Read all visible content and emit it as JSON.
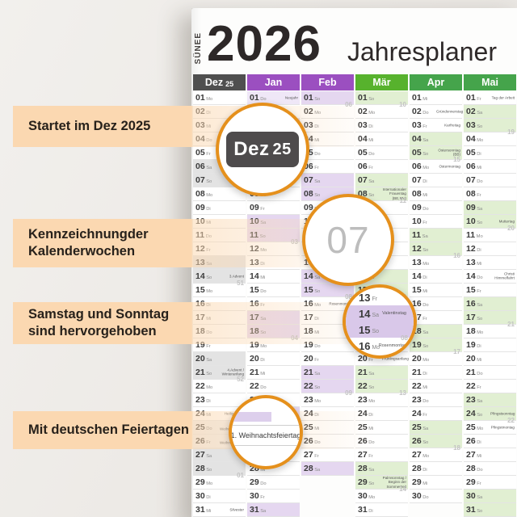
{
  "header": {
    "brand": "SÜNEE",
    "year": "2026",
    "title": "Jahresplaner"
  },
  "colors": {
    "accent_orange": "#e5901c",
    "band_peach": "#fbd8b1",
    "dez_header": "#4f4f4f",
    "purple_header": "#9b4fc0",
    "green_header_maerz": "#57b22d",
    "green_header": "#45a44b"
  },
  "annotations": {
    "bands": [
      {
        "lines": [
          "Startet im Dez 2025"
        ]
      },
      {
        "lines": [
          "Kennzeichnungder",
          "Kalenderwochen"
        ]
      },
      {
        "lines": [
          "Samstag und Sonntag",
          "sind hervorgehoben"
        ]
      },
      {
        "lines": [
          "Mit deutschen Feiertagen"
        ]
      }
    ]
  },
  "callouts": {
    "dez25": {
      "month": "Dez",
      "year_suffix": "25"
    },
    "week_number": {
      "value": "07"
    },
    "weekend": {
      "highlight_color": "#d9c8e9",
      "rows": [
        {
          "d": "13",
          "w": "Fr"
        },
        {
          "d": "14",
          "w": "Sa",
          "we": 1,
          "hol": "Valentinstag"
        },
        {
          "d": "15",
          "w": "So",
          "we": 1
        },
        {
          "d": "16",
          "w": "Mo",
          "kw": "08",
          "hol": "Rosenmontag"
        }
      ]
    },
    "holiday": {
      "label": "1. Weihnachtsfeiertag"
    }
  },
  "calendar": {
    "months": [
      {
        "name": "Dez 25",
        "header_color": "#4f4f4f",
        "weekend_color": "#e3e3e3",
        "holiday_color": "#eeeeee",
        "rows": [
          {
            "d": "01",
            "w": "Mo"
          },
          {
            "d": "02",
            "w": "Di"
          },
          {
            "d": "03",
            "w": "Mi"
          },
          {
            "d": "04",
            "w": "Do"
          },
          {
            "d": "05",
            "w": "Fr"
          },
          {
            "d": "06",
            "w": "Sa",
            "we": 1
          },
          {
            "d": "07",
            "w": "So",
            "we": 1,
            "hol": "2.Advent"
          },
          {
            "d": "08",
            "w": "Mo",
            "kw": "50"
          },
          {
            "d": "09",
            "w": "Di"
          },
          {
            "d": "10",
            "w": "Mi"
          },
          {
            "d": "11",
            "w": "Do"
          },
          {
            "d": "12",
            "w": "Fr"
          },
          {
            "d": "13",
            "w": "Sa",
            "we": 1
          },
          {
            "d": "14",
            "w": "So",
            "we": 1,
            "hol": "3.Advent"
          },
          {
            "d": "15",
            "w": "Mo",
            "kw": "51"
          },
          {
            "d": "16",
            "w": "Di"
          },
          {
            "d": "17",
            "w": "Mi"
          },
          {
            "d": "18",
            "w": "Do"
          },
          {
            "d": "19",
            "w": "Fr"
          },
          {
            "d": "20",
            "w": "Sa",
            "we": 1
          },
          {
            "d": "21",
            "w": "So",
            "we": 1,
            "hol": "4.Advent / Winteranfang"
          },
          {
            "d": "22",
            "w": "Mo",
            "kw": "52"
          },
          {
            "d": "23",
            "w": "Di"
          },
          {
            "d": "24",
            "w": "Mi",
            "hol": "Heiligabend"
          },
          {
            "d": "25",
            "w": "Do",
            "ht": 1,
            "hol": "1. Weihnachtsfeiertag"
          },
          {
            "d": "26",
            "w": "Fr",
            "ht": 1,
            "hol": "2. Weihnachtsfeiertag"
          },
          {
            "d": "27",
            "w": "Sa",
            "we": 1
          },
          {
            "d": "28",
            "w": "So",
            "we": 1
          },
          {
            "d": "29",
            "w": "Mo",
            "kw": "01"
          },
          {
            "d": "30",
            "w": "Di"
          },
          {
            "d": "31",
            "w": "Mi",
            "hol": "Silvester"
          }
        ]
      },
      {
        "name": "Jan",
        "header_color": "#9b4fc0",
        "weekend_color": "#e5d7f0",
        "holiday_color": "#efe7f7",
        "rows": [
          {
            "d": "01",
            "w": "Do",
            "ht": 1,
            "hol": "Neujahr"
          },
          {
            "d": "02",
            "w": "Fr"
          },
          {
            "d": "03",
            "w": "Sa",
            "we": 1
          },
          {
            "d": "04",
            "w": "So",
            "we": 1
          },
          {
            "d": "05",
            "w": "Mo",
            "kw": "02"
          },
          {
            "d": "06",
            "w": "Di",
            "ht": 1,
            "hol": "Heilige Drei Könige (BW,BY,ST)"
          },
          {
            "d": "07",
            "w": "Mi"
          },
          {
            "d": "08",
            "w": "Do"
          },
          {
            "d": "09",
            "w": "Fr"
          },
          {
            "d": "10",
            "w": "Sa",
            "we": 1
          },
          {
            "d": "11",
            "w": "So",
            "we": 1
          },
          {
            "d": "12",
            "w": "Mo",
            "kw": "03"
          },
          {
            "d": "13",
            "w": "Di"
          },
          {
            "d": "14",
            "w": "Mi"
          },
          {
            "d": "15",
            "w": "Do"
          },
          {
            "d": "16",
            "w": "Fr"
          },
          {
            "d": "17",
            "w": "Sa",
            "we": 1
          },
          {
            "d": "18",
            "w": "So",
            "we": 1
          },
          {
            "d": "19",
            "w": "Mo",
            "kw": "04"
          },
          {
            "d": "20",
            "w": "Di"
          },
          {
            "d": "21",
            "w": "Mi"
          },
          {
            "d": "22",
            "w": "Do"
          },
          {
            "d": "23",
            "w": "Fr"
          },
          {
            "d": "24",
            "w": "Sa",
            "we": 1
          },
          {
            "d": "25",
            "w": "So",
            "we": 1
          },
          {
            "d": "26",
            "w": "Mo",
            "kw": "05"
          },
          {
            "d": "27",
            "w": "Di"
          },
          {
            "d": "28",
            "w": "Mi"
          },
          {
            "d": "29",
            "w": "Do"
          },
          {
            "d": "30",
            "w": "Fr"
          },
          {
            "d": "31",
            "w": "Sa",
            "we": 1
          }
        ]
      },
      {
        "name": "Feb",
        "header_color": "#9b4fc0",
        "weekend_color": "#e5d7f0",
        "holiday_color": "#efe7f7",
        "rows": [
          {
            "d": "01",
            "w": "So",
            "we": 1
          },
          {
            "d": "02",
            "w": "Mo",
            "kw": "06"
          },
          {
            "d": "03",
            "w": "Di"
          },
          {
            "d": "04",
            "w": "Mi"
          },
          {
            "d": "05",
            "w": "Do"
          },
          {
            "d": "06",
            "w": "Fr"
          },
          {
            "d": "07",
            "w": "Sa",
            "we": 1
          },
          {
            "d": "08",
            "w": "So",
            "we": 1
          },
          {
            "d": "09",
            "w": "Mo",
            "kw": "07"
          },
          {
            "d": "10",
            "w": "Di"
          },
          {
            "d": "11",
            "w": "Mi"
          },
          {
            "d": "12",
            "w": "Do"
          },
          {
            "d": "13",
            "w": "Fr"
          },
          {
            "d": "14",
            "w": "Sa",
            "we": 1,
            "hol": "Valentinstag"
          },
          {
            "d": "15",
            "w": "So",
            "we": 1
          },
          {
            "d": "16",
            "w": "Mo",
            "kw": "08",
            "hol": "Rosenmontag"
          },
          {
            "d": "17",
            "w": "Di"
          },
          {
            "d": "18",
            "w": "Mi"
          },
          {
            "d": "19",
            "w": "Do"
          },
          {
            "d": "20",
            "w": "Fr"
          },
          {
            "d": "21",
            "w": "Sa",
            "we": 1
          },
          {
            "d": "22",
            "w": "So",
            "we": 1
          },
          {
            "d": "23",
            "w": "Mo",
            "kw": "09"
          },
          {
            "d": "24",
            "w": "Di"
          },
          {
            "d": "25",
            "w": "Mi"
          },
          {
            "d": "26",
            "w": "Do"
          },
          {
            "d": "27",
            "w": "Fr"
          },
          {
            "d": "28",
            "w": "Sa",
            "we": 1
          }
        ]
      },
      {
        "name": "Mär",
        "header_color": "#57b22d",
        "weekend_color": "#e1efd2",
        "holiday_color": "#eef6e6",
        "rows": [
          {
            "d": "01",
            "w": "So",
            "we": 1
          },
          {
            "d": "02",
            "w": "Mo",
            "kw": "10"
          },
          {
            "d": "03",
            "w": "Di"
          },
          {
            "d": "04",
            "w": "Mi"
          },
          {
            "d": "05",
            "w": "Do"
          },
          {
            "d": "06",
            "w": "Fr"
          },
          {
            "d": "07",
            "w": "Sa",
            "we": 1
          },
          {
            "d": "08",
            "w": "So",
            "we": 1,
            "hol": "Internationaler Frauentag (BE,MV)"
          },
          {
            "d": "09",
            "w": "Mo",
            "kw": "11"
          },
          {
            "d": "10",
            "w": "Di"
          },
          {
            "d": "11",
            "w": "Mi"
          },
          {
            "d": "12",
            "w": "Do"
          },
          {
            "d": "13",
            "w": "Fr"
          },
          {
            "d": "14",
            "w": "Sa",
            "we": 1
          },
          {
            "d": "15",
            "w": "So",
            "we": 1
          },
          {
            "d": "16",
            "w": "Mo",
            "kw": "12"
          },
          {
            "d": "17",
            "w": "Di"
          },
          {
            "d": "18",
            "w": "Mi"
          },
          {
            "d": "19",
            "w": "Do"
          },
          {
            "d": "20",
            "w": "Fr",
            "hol": "Frühlingsanfang"
          },
          {
            "d": "21",
            "w": "Sa",
            "we": 1
          },
          {
            "d": "22",
            "w": "So",
            "we": 1
          },
          {
            "d": "23",
            "w": "Mo",
            "kw": "13"
          },
          {
            "d": "24",
            "w": "Di"
          },
          {
            "d": "25",
            "w": "Mi"
          },
          {
            "d": "26",
            "w": "Do"
          },
          {
            "d": "27",
            "w": "Fr"
          },
          {
            "d": "28",
            "w": "Sa",
            "we": 1
          },
          {
            "d": "29",
            "w": "So",
            "we": 1,
            "hol": "Palmsonntag / Beginn der Sommerzeit"
          },
          {
            "d": "30",
            "w": "Mo",
            "kw": "14"
          },
          {
            "d": "31",
            "w": "Di"
          }
        ]
      },
      {
        "name": "Apr",
        "header_color": "#45a44b",
        "weekend_color": "#e1efd2",
        "holiday_color": "#eef6e6",
        "rows": [
          {
            "d": "01",
            "w": "Mi"
          },
          {
            "d": "02",
            "w": "Do",
            "hol": "Gründonnerstag"
          },
          {
            "d": "03",
            "w": "Fr",
            "hol": "Karfreitag"
          },
          {
            "d": "04",
            "w": "Sa",
            "we": 1
          },
          {
            "d": "05",
            "w": "So",
            "we": 1,
            "hol": "Ostersonntag (BB)"
          },
          {
            "d": "06",
            "w": "Mo",
            "kw": "15",
            "hol": "Ostermontag"
          },
          {
            "d": "07",
            "w": "Di"
          },
          {
            "d": "08",
            "w": "Mi"
          },
          {
            "d": "09",
            "w": "Do"
          },
          {
            "d": "10",
            "w": "Fr"
          },
          {
            "d": "11",
            "w": "Sa",
            "we": 1
          },
          {
            "d": "12",
            "w": "So",
            "we": 1
          },
          {
            "d": "13",
            "w": "Mo",
            "kw": "16"
          },
          {
            "d": "14",
            "w": "Di"
          },
          {
            "d": "15",
            "w": "Mi"
          },
          {
            "d": "16",
            "w": "Do"
          },
          {
            "d": "17",
            "w": "Fr"
          },
          {
            "d": "18",
            "w": "Sa",
            "we": 1
          },
          {
            "d": "19",
            "w": "So",
            "we": 1
          },
          {
            "d": "20",
            "w": "Mo",
            "kw": "17"
          },
          {
            "d": "21",
            "w": "Di"
          },
          {
            "d": "22",
            "w": "Mi"
          },
          {
            "d": "23",
            "w": "Do"
          },
          {
            "d": "24",
            "w": "Fr"
          },
          {
            "d": "25",
            "w": "Sa",
            "we": 1
          },
          {
            "d": "26",
            "w": "So",
            "we": 1
          },
          {
            "d": "27",
            "w": "Mo",
            "kw": "18"
          },
          {
            "d": "28",
            "w": "Di"
          },
          {
            "d": "29",
            "w": "Mi"
          },
          {
            "d": "30",
            "w": "Do"
          }
        ]
      },
      {
        "name": "Mai",
        "header_color": "#45a44b",
        "weekend_color": "#e1efd2",
        "holiday_color": "#eef6e6",
        "rows": [
          {
            "d": "01",
            "w": "Fr",
            "hol": "Tag der Arbeit"
          },
          {
            "d": "02",
            "w": "Sa",
            "we": 1
          },
          {
            "d": "03",
            "w": "So",
            "we": 1
          },
          {
            "d": "04",
            "w": "Mo",
            "kw": "19"
          },
          {
            "d": "05",
            "w": "Di"
          },
          {
            "d": "06",
            "w": "Mi"
          },
          {
            "d": "07",
            "w": "Do"
          },
          {
            "d": "08",
            "w": "Fr"
          },
          {
            "d": "09",
            "w": "Sa",
            "we": 1
          },
          {
            "d": "10",
            "w": "So",
            "we": 1,
            "hol": "Muttertag"
          },
          {
            "d": "11",
            "w": "Mo",
            "kw": "20"
          },
          {
            "d": "12",
            "w": "Di"
          },
          {
            "d": "13",
            "w": "Mi"
          },
          {
            "d": "14",
            "w": "Do",
            "hol": "Christi Himmelfahrt"
          },
          {
            "d": "15",
            "w": "Fr"
          },
          {
            "d": "16",
            "w": "Sa",
            "we": 1
          },
          {
            "d": "17",
            "w": "So",
            "we": 1
          },
          {
            "d": "18",
            "w": "Mo",
            "kw": "21"
          },
          {
            "d": "19",
            "w": "Di"
          },
          {
            "d": "20",
            "w": "Mi"
          },
          {
            "d": "21",
            "w": "Do"
          },
          {
            "d": "22",
            "w": "Fr"
          },
          {
            "d": "23",
            "w": "Sa",
            "we": 1
          },
          {
            "d": "24",
            "w": "So",
            "we": 1,
            "hol": "Pfingstsonntag"
          },
          {
            "d": "25",
            "w": "Mo",
            "kw": "22",
            "hol": "Pfingstmontag"
          },
          {
            "d": "26",
            "w": "Di"
          },
          {
            "d": "27",
            "w": "Mi"
          },
          {
            "d": "28",
            "w": "Do"
          },
          {
            "d": "29",
            "w": "Fr"
          },
          {
            "d": "30",
            "w": "Sa",
            "we": 1
          },
          {
            "d": "31",
            "w": "So",
            "we": 1
          }
        ]
      }
    ]
  }
}
